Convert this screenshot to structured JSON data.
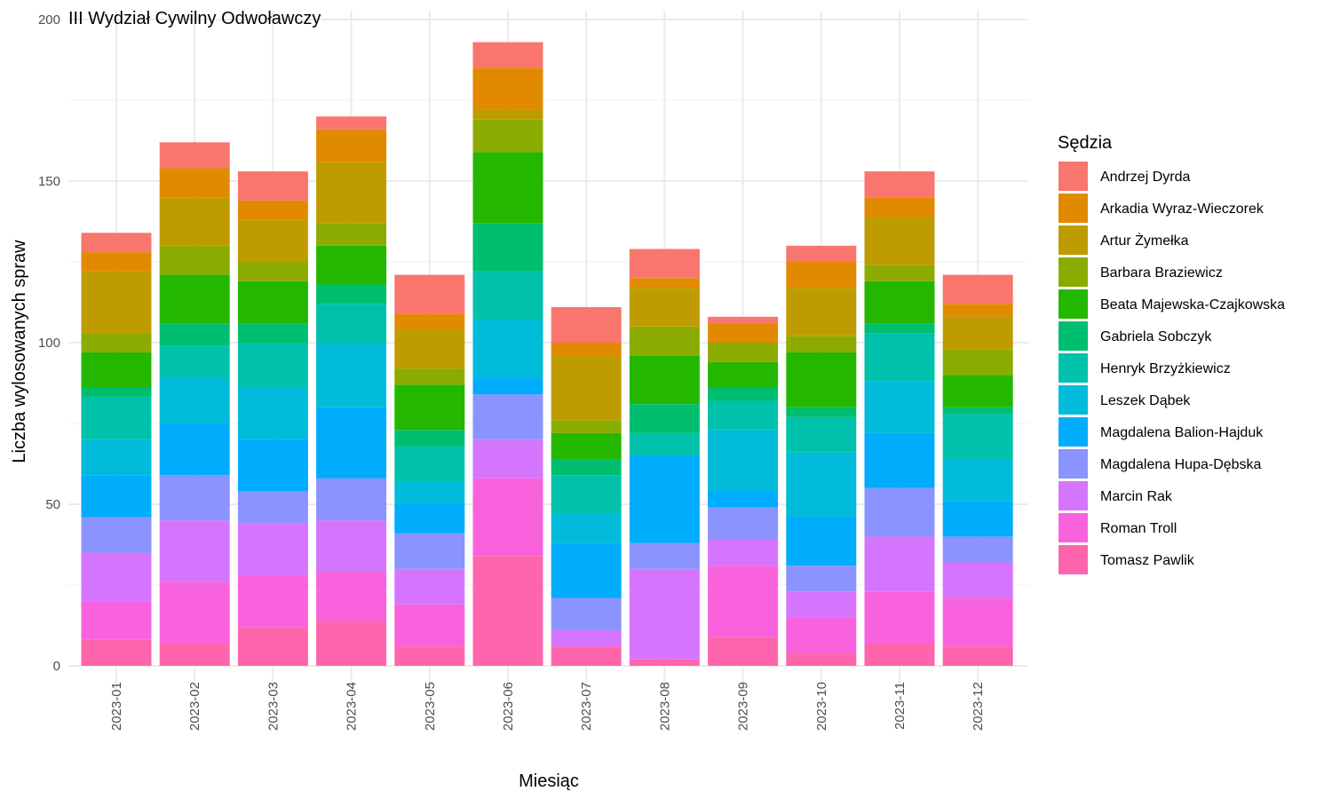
{
  "chart_data": {
    "type": "bar",
    "stacked": true,
    "title": "III Wydział Cywilny Odwoławczy",
    "xlabel": "Miesiąc",
    "ylabel": "Liczba wylosowanych spraw",
    "ylim": [
      0,
      200
    ],
    "yticks": [
      0,
      50,
      100,
      150,
      200
    ],
    "grid": true,
    "legend_title": "Sędzia",
    "legend_position": "right",
    "categories": [
      "2023-01",
      "2023-02",
      "2023-03",
      "2023-04",
      "2023-05",
      "2023-06",
      "2023-07",
      "2023-08",
      "2023-09",
      "2023-10",
      "2023-11",
      "2023-12"
    ],
    "series": [
      {
        "name": "Andrzej Dyrda",
        "color": "#F8766D",
        "values": [
          6,
          8,
          9,
          4,
          12,
          8,
          11,
          9,
          2,
          5,
          8,
          9
        ]
      },
      {
        "name": "Arkadia Wyraz-Wieczorek",
        "color": "#E18A00",
        "values": [
          6,
          9,
          6,
          10,
          5,
          13,
          4,
          3,
          6,
          8,
          6,
          4
        ]
      },
      {
        "name": "Artur Żymełka",
        "color": "#BE9C00",
        "values": [
          19,
          15,
          13,
          19,
          12,
          3,
          20,
          12,
          0,
          15,
          15,
          10
        ]
      },
      {
        "name": "Barbara Braziewicz",
        "color": "#8CAB00",
        "values": [
          6,
          9,
          6,
          7,
          5,
          10,
          4,
          9,
          6,
          5,
          5,
          8
        ]
      },
      {
        "name": "Beata Majewska-Czajkowska",
        "color": "#24B700",
        "values": [
          11,
          15,
          13,
          12,
          14,
          22,
          8,
          15,
          8,
          17,
          13,
          10
        ]
      },
      {
        "name": "Gabriela Sobczyk",
        "color": "#00BE70",
        "values": [
          3,
          7,
          6,
          6,
          5,
          15,
          5,
          9,
          4,
          3,
          3,
          2
        ]
      },
      {
        "name": "Henryk Brzyżkiewicz",
        "color": "#00C1AB",
        "values": [
          13,
          10,
          14,
          12,
          11,
          15,
          12,
          7,
          9,
          11,
          15,
          14
        ]
      },
      {
        "name": "Leszek Dąbek",
        "color": "#00BBDA",
        "values": [
          11,
          14,
          16,
          20,
          7,
          18,
          9,
          0,
          19,
          20,
          16,
          13
        ]
      },
      {
        "name": "Magdalena Balion-Hajduk",
        "color": "#00ACFC",
        "values": [
          13,
          16,
          16,
          22,
          9,
          5,
          17,
          27,
          5,
          15,
          17,
          11
        ]
      },
      {
        "name": "Magdalena Hupa-Dębska",
        "color": "#8B93FF",
        "values": [
          11,
          14,
          10,
          13,
          11,
          14,
          10,
          8,
          10,
          8,
          15,
          8
        ]
      },
      {
        "name": "Marcin Rak",
        "color": "#D575FE",
        "values": [
          15,
          19,
          16,
          16,
          11,
          12,
          5,
          28,
          8,
          8,
          17,
          11
        ]
      },
      {
        "name": "Roman Troll",
        "color": "#F962DD",
        "values": [
          12,
          19,
          16,
          15,
          13,
          24,
          0,
          0,
          22,
          11,
          16,
          15
        ]
      },
      {
        "name": "Tomasz Pawlik",
        "color": "#FF65AC",
        "values": [
          8,
          7,
          12,
          14,
          6,
          34,
          6,
          2,
          9,
          4,
          7,
          6
        ]
      }
    ]
  }
}
